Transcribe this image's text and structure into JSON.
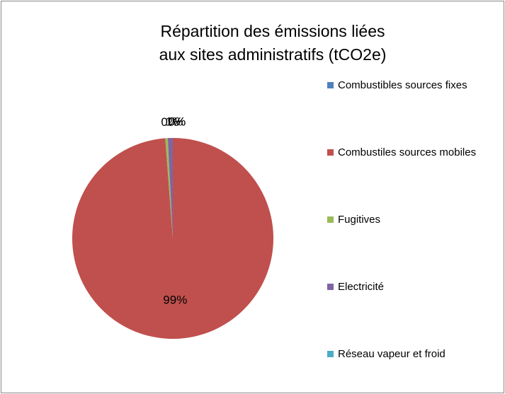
{
  "chart_data": {
    "type": "pie",
    "title": "Répartition des émissions liées aux sites administratifs (tCO2e)",
    "categories": [
      "Combustibles sources fixes",
      "Combustiles sources mobiles",
      "Fugitives",
      "Electricité",
      "Réseau vapeur et froid"
    ],
    "values": [
      0,
      98.8,
      0.4,
      0.8,
      0
    ],
    "value_labels": [
      "0%",
      "99%",
      "0%",
      "1%",
      "0%"
    ],
    "colors": [
      "#4f81bd",
      "#c0504d",
      "#9bbb59",
      "#8064a2",
      "#4bacc6"
    ],
    "legend": "right"
  }
}
